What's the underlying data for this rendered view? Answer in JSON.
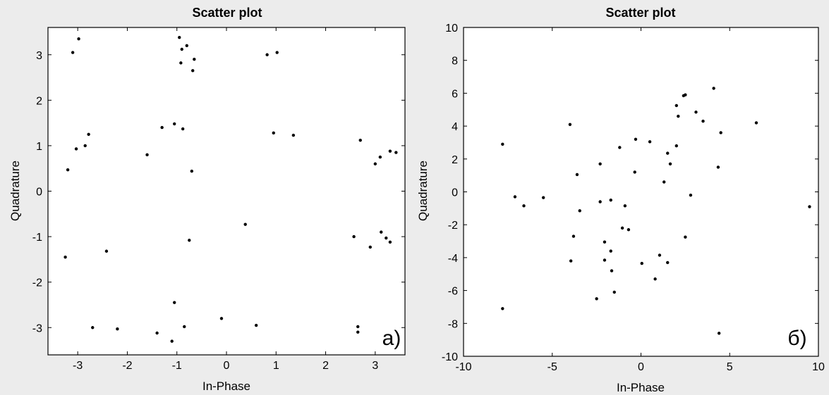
{
  "chart_data": [
    {
      "type": "scatter",
      "title": "Scatter plot",
      "xlabel": "In-Phase",
      "ylabel": "Quadrature",
      "panel_label": "a)",
      "xlim": [
        -3.6,
        3.6
      ],
      "ylim": [
        -3.6,
        3.6
      ],
      "xticks": [
        -3,
        -2,
        -1,
        0,
        1,
        2,
        3
      ],
      "yticks": [
        -3,
        -2,
        -1,
        0,
        1,
        2,
        3
      ],
      "grid": false,
      "marker_color": "#000000",
      "series": [
        {
          "points": [
            [
              -3.1,
              3.05
            ],
            [
              -2.98,
              3.35
            ],
            [
              -0.95,
              3.38
            ],
            [
              -0.9,
              3.12
            ],
            [
              -0.8,
              3.2
            ],
            [
              -0.65,
              2.9
            ],
            [
              -0.92,
              2.82
            ],
            [
              -0.68,
              2.65
            ],
            [
              0.82,
              3.0
            ],
            [
              1.02,
              3.05
            ],
            [
              -2.78,
              1.25
            ],
            [
              -2.85,
              1.0
            ],
            [
              -3.03,
              0.93
            ],
            [
              -3.2,
              0.47
            ],
            [
              -1.3,
              1.4
            ],
            [
              -1.05,
              1.48
            ],
            [
              -0.88,
              1.37
            ],
            [
              -1.6,
              0.8
            ],
            [
              -0.7,
              0.44
            ],
            [
              0.95,
              1.28
            ],
            [
              1.35,
              1.23
            ],
            [
              2.7,
              1.12
            ],
            [
              3.0,
              0.6
            ],
            [
              3.1,
              0.75
            ],
            [
              3.3,
              0.88
            ],
            [
              3.42,
              0.85
            ],
            [
              -3.25,
              -1.45
            ],
            [
              -2.42,
              -1.32
            ],
            [
              -0.75,
              -1.08
            ],
            [
              0.38,
              -0.73
            ],
            [
              2.57,
              -1.0
            ],
            [
              2.9,
              -1.23
            ],
            [
              3.12,
              -0.9
            ],
            [
              3.22,
              -1.03
            ],
            [
              3.3,
              -1.12
            ],
            [
              -1.05,
              -2.45
            ],
            [
              -2.7,
              -3.0
            ],
            [
              -2.2,
              -3.03
            ],
            [
              -1.4,
              -3.12
            ],
            [
              -0.85,
              -2.98
            ],
            [
              -1.1,
              -3.3
            ],
            [
              -0.1,
              -2.8
            ],
            [
              0.6,
              -2.95
            ],
            [
              2.65,
              -2.98
            ],
            [
              2.65,
              -3.1
            ]
          ]
        }
      ]
    },
    {
      "type": "scatter",
      "title": "Scatter plot",
      "xlabel": "In-Phase",
      "ylabel": "Quadrature",
      "panel_label": "б)",
      "xlim": [
        -10,
        10
      ],
      "ylim": [
        -10,
        10
      ],
      "xticks": [
        -10,
        -5,
        0,
        5,
        10
      ],
      "yticks": [
        -10,
        -8,
        -6,
        -4,
        -2,
        0,
        2,
        4,
        6,
        8,
        10
      ],
      "grid": false,
      "marker_color": "#000000",
      "series": [
        {
          "points": [
            [
              -7.8,
              2.9
            ],
            [
              -7.1,
              -0.3
            ],
            [
              -6.6,
              -0.85
            ],
            [
              -5.5,
              -0.35
            ],
            [
              -7.8,
              -7.1
            ],
            [
              -4.0,
              4.1
            ],
            [
              -3.6,
              1.05
            ],
            [
              -3.45,
              -1.15
            ],
            [
              -3.8,
              -2.7
            ],
            [
              -3.95,
              -4.2
            ],
            [
              -2.3,
              1.7
            ],
            [
              -2.3,
              -0.6
            ],
            [
              -1.7,
              -0.5
            ],
            [
              -1.2,
              2.7
            ],
            [
              -0.9,
              -0.85
            ],
            [
              -1.05,
              -2.2
            ],
            [
              -0.7,
              -2.3
            ],
            [
              -2.05,
              -3.05
            ],
            [
              -2.05,
              -4.15
            ],
            [
              -1.7,
              -3.6
            ],
            [
              -1.65,
              -4.8
            ],
            [
              -1.5,
              -6.1
            ],
            [
              -2.5,
              -6.5
            ],
            [
              -0.3,
              3.2
            ],
            [
              -0.35,
              1.2
            ],
            [
              0.5,
              3.05
            ],
            [
              0.05,
              -4.35
            ],
            [
              0.8,
              -5.3
            ],
            [
              1.05,
              -3.85
            ],
            [
              1.5,
              -4.3
            ],
            [
              1.5,
              2.35
            ],
            [
              1.3,
              0.6
            ],
            [
              1.65,
              1.7
            ],
            [
              2.0,
              2.8
            ],
            [
              2.0,
              5.25
            ],
            [
              2.1,
              4.6
            ],
            [
              2.4,
              5.85
            ],
            [
              2.5,
              5.9
            ],
            [
              3.1,
              4.85
            ],
            [
              3.5,
              4.3
            ],
            [
              2.8,
              -0.2
            ],
            [
              2.5,
              -2.75
            ],
            [
              4.1,
              6.3
            ],
            [
              4.5,
              3.6
            ],
            [
              4.35,
              1.5
            ],
            [
              4.4,
              -8.6
            ],
            [
              6.5,
              4.2
            ],
            [
              9.5,
              -0.9
            ]
          ]
        }
      ]
    }
  ]
}
